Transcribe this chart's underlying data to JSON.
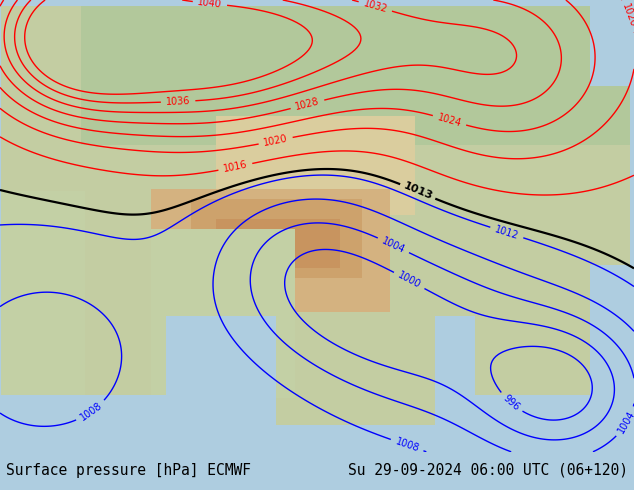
{
  "title_left": "Surface pressure [hPa] ECMWF",
  "title_right": "Su 29-09-2024 06:00 UTC (06+120)",
  "footer_bg": "#cccccc",
  "ocean_color": "#aecde0",
  "title_fontsize": 10.5,
  "contour_levels_blue": [
    996,
    1000,
    1004,
    1008,
    1012
  ],
  "contour_levels_black": [
    1013
  ],
  "contour_levels_red": [
    1016,
    1020,
    1024,
    1028,
    1032,
    1036,
    1040
  ],
  "blue_color": "#0000ff",
  "black_color": "#000000",
  "red_color": "#ff0000"
}
